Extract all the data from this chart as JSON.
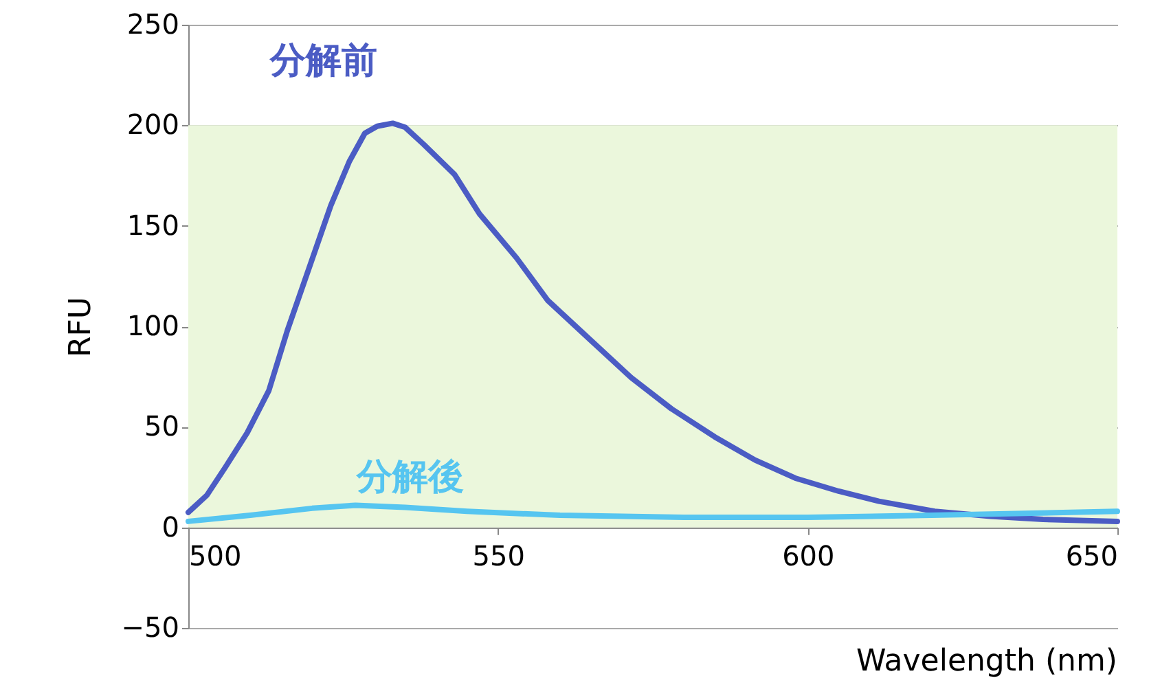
{
  "chart_data": {
    "type": "line",
    "xlabel": "Wavelength (nm)",
    "ylabel": "RFU",
    "xlim": [
      500,
      650
    ],
    "xticks": [
      500,
      550,
      600,
      650
    ],
    "ylim": [
      -50,
      250
    ],
    "yticks": [
      -50,
      0,
      50,
      100,
      150,
      200,
      250
    ],
    "grid": "y",
    "legend": false,
    "bands": [
      {
        "axis": "y",
        "from": 0,
        "to": 200,
        "color": "#ebf7dc"
      }
    ],
    "series": [
      {
        "name": "分解前",
        "color": "#4b5cc4",
        "x": [
          500,
          503,
          506,
          509.5,
          513,
          516,
          519.5,
          523,
          526,
          528.5,
          530.5,
          533,
          535,
          538,
          543,
          547,
          553,
          558,
          565,
          571.5,
          578,
          585,
          591.5,
          598,
          605,
          611.5,
          620.5,
          629.5,
          638,
          650
        ],
        "values": [
          7.5,
          16,
          30,
          47,
          68,
          98,
          129,
          160,
          182,
          196,
          199.5,
          201,
          199,
          190.5,
          175.5,
          156,
          134,
          113,
          93,
          74.5,
          59,
          45,
          33.5,
          24.5,
          18,
          13,
          8,
          5.5,
          4,
          3
        ]
      },
      {
        "name": "分解後",
        "color": "#56c5f0",
        "x": [
          500,
          510,
          520,
          527,
          535,
          545,
          560,
          580,
          600,
          620,
          635,
          650
        ],
        "values": [
          3,
          6,
          9.5,
          11,
          10,
          8,
          6,
          5,
          5,
          6,
          7,
          8
        ]
      }
    ]
  }
}
